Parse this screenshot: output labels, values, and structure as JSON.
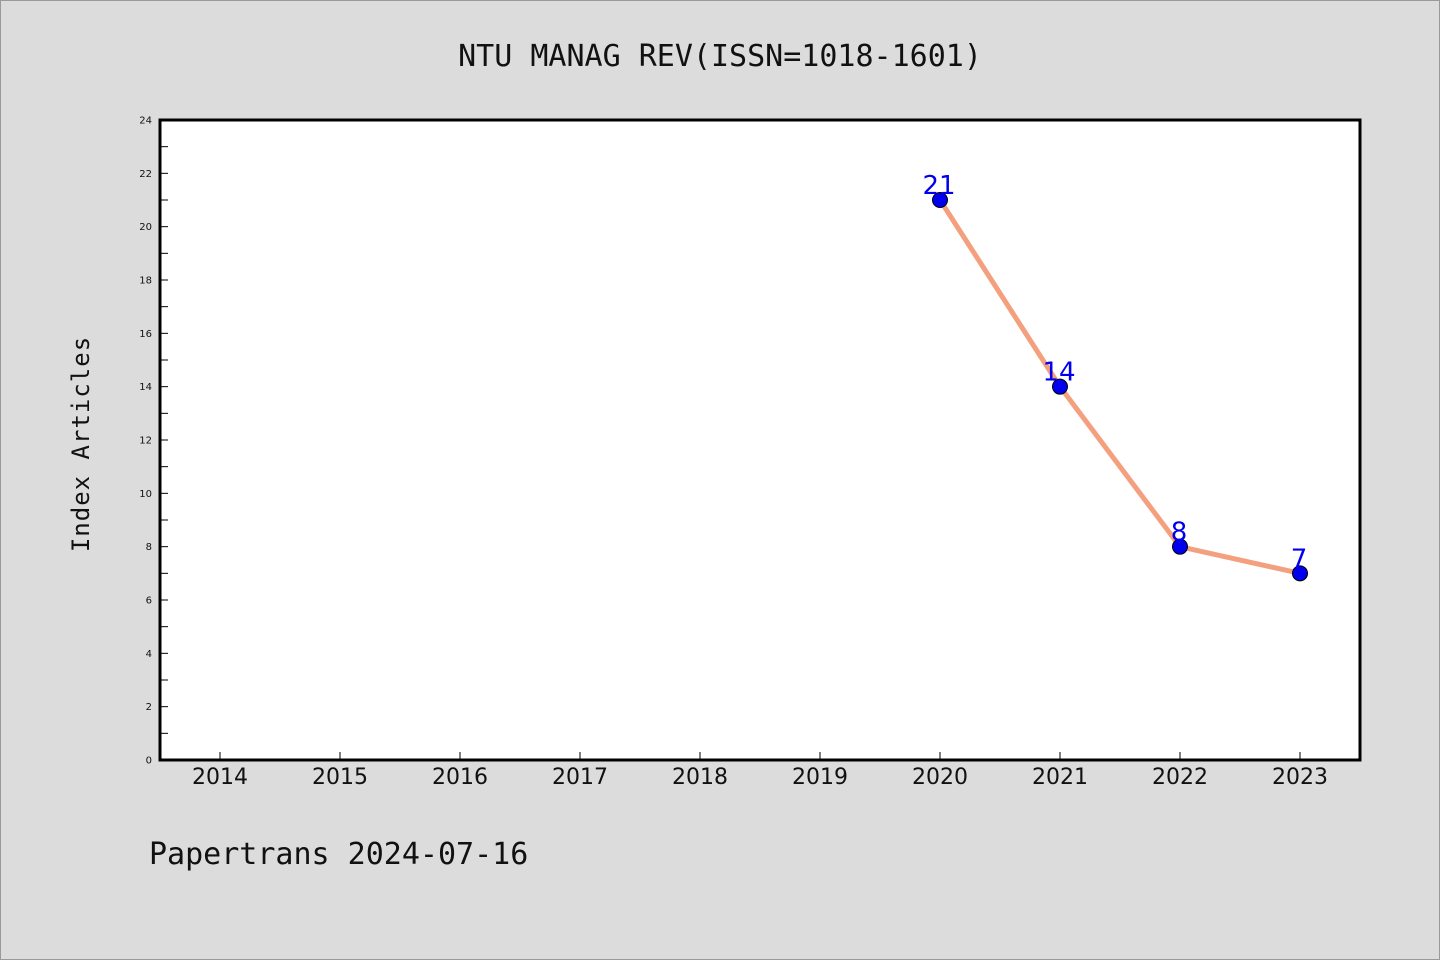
{
  "colors": {
    "background": "#dcdcdc",
    "plot_background": "#ffffff",
    "axis": "#000000",
    "line": "#f4a07e",
    "marker": "#0000ee",
    "data_label": "#0000ee"
  },
  "footer": "Papertrans 2024-07-16",
  "chart_data": {
    "type": "line",
    "title": "NTU MANAG REV(ISSN=1018-1601)",
    "xlabel": "",
    "ylabel": "Index Articles",
    "categories": [
      "2014",
      "2015",
      "2016",
      "2017",
      "2018",
      "2019",
      "2020",
      "2021",
      "2022",
      "2023"
    ],
    "ylim": [
      0,
      24
    ],
    "yticks": [
      0,
      2,
      4,
      6,
      8,
      10,
      12,
      14,
      16,
      18,
      20,
      22,
      24
    ],
    "grid": false,
    "series": [
      {
        "x": [
          "2020",
          "2021",
          "2022",
          "2023"
        ],
        "values": [
          21,
          14,
          8,
          7
        ],
        "data_labels": [
          "21",
          "14",
          "8",
          "7"
        ]
      }
    ]
  }
}
